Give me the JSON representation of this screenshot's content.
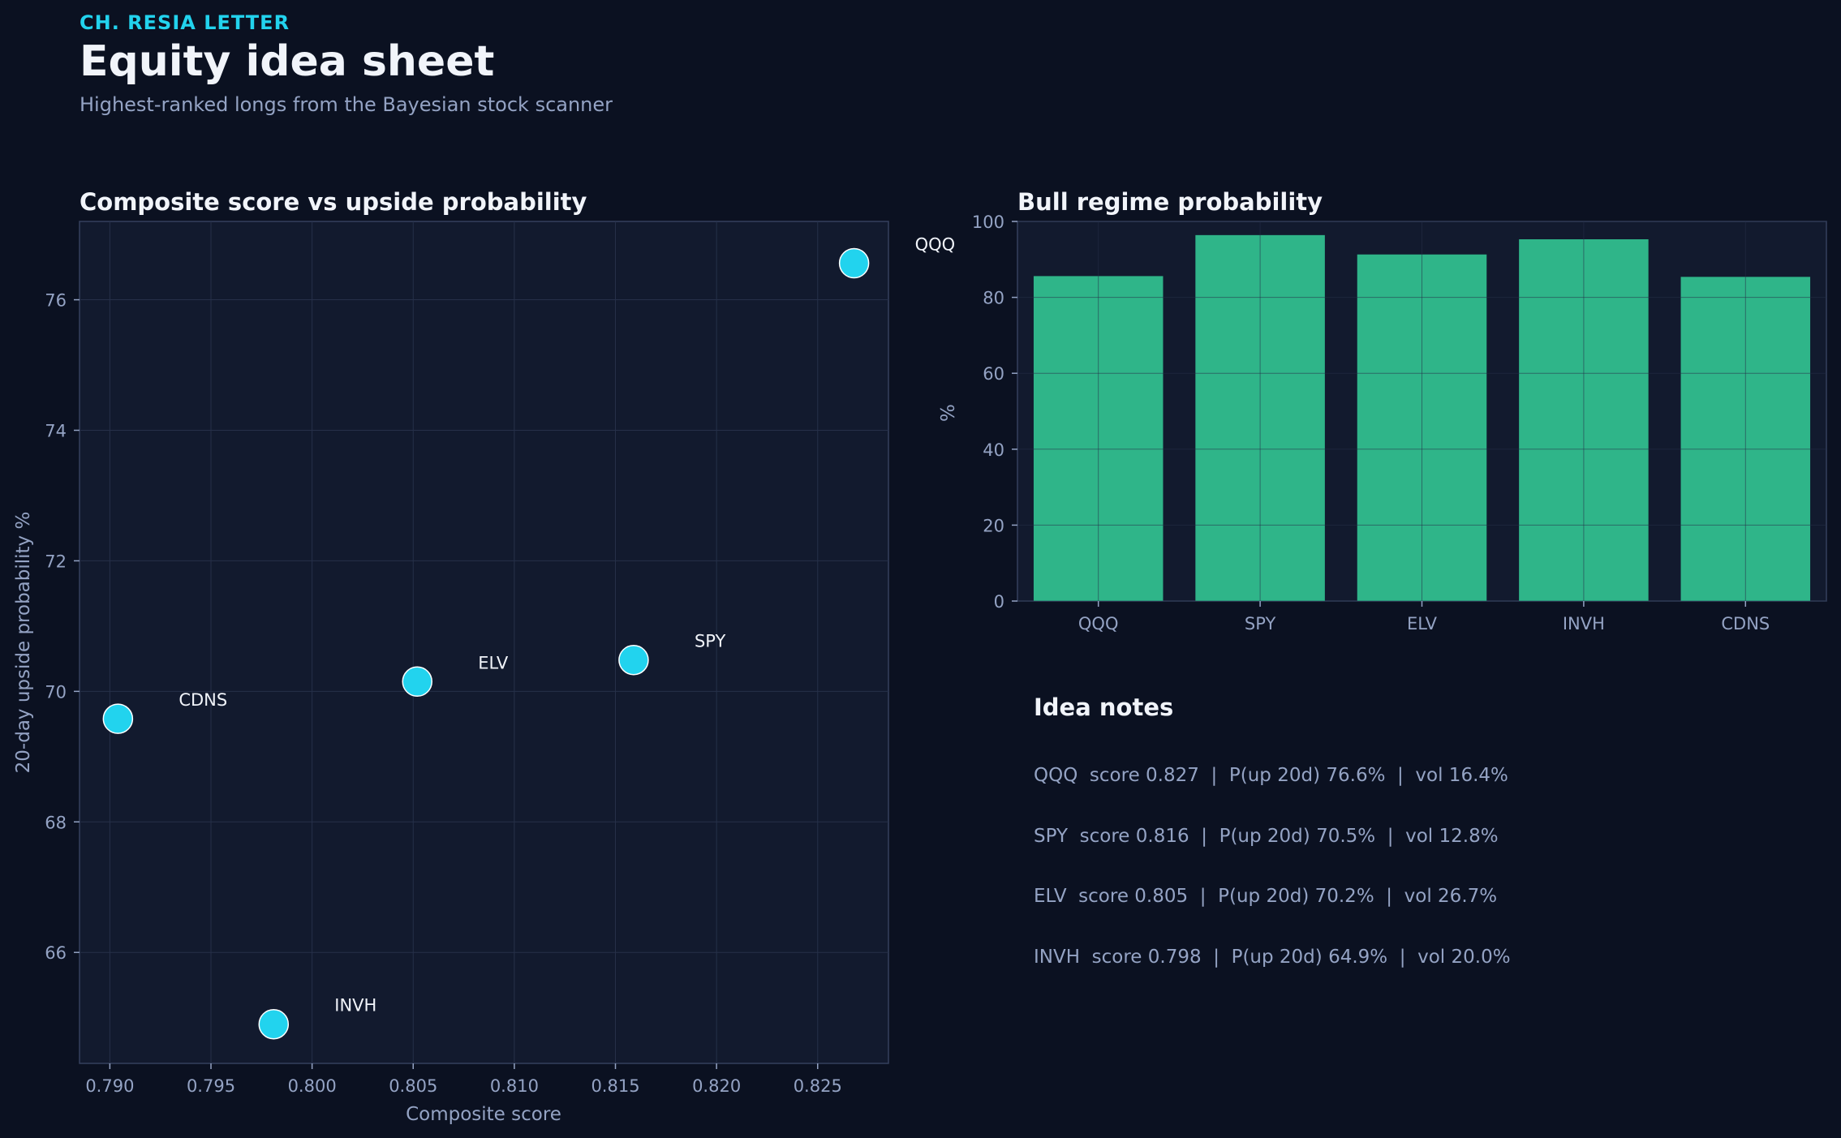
{
  "header": {
    "kicker": "CH. RESIA LETTER",
    "title": "Equity idea sheet",
    "subtitle": "Highest-ranked longs from the Bayesian stock scanner"
  },
  "colors": {
    "background": "#0b1121",
    "panel": "#121a2e",
    "accent_cyan": "#22d3ee",
    "bar_green": "#2fb589",
    "text_muted": "#94a3c4"
  },
  "chart_data": [
    {
      "type": "scatter",
      "title": "Composite score vs upside probability",
      "xlabel": "Composite score",
      "ylabel": "20-day upside probability %",
      "xlim": [
        0.7885,
        0.8285
      ],
      "ylim": [
        64.3,
        77.2
      ],
      "xticks": [
        0.79,
        0.795,
        0.8,
        0.805,
        0.81,
        0.815,
        0.82,
        0.825
      ],
      "xtick_labels": [
        "0.790",
        "0.795",
        "0.800",
        "0.805",
        "0.810",
        "0.815",
        "0.820",
        "0.825"
      ],
      "yticks": [
        66,
        68,
        70,
        72,
        74,
        76
      ],
      "ytick_labels": [
        "66",
        "68",
        "70",
        "72",
        "74",
        "76"
      ],
      "grid": true,
      "points": [
        {
          "label": "QQQ",
          "x": 0.8268,
          "y": 76.56
        },
        {
          "label": "SPY",
          "x": 0.8159,
          "y": 70.48
        },
        {
          "label": "ELV",
          "x": 0.8052,
          "y": 70.15
        },
        {
          "label": "INVH",
          "x": 0.7981,
          "y": 64.9
        },
        {
          "label": "CDNS",
          "x": 0.7904,
          "y": 69.58
        }
      ]
    },
    {
      "type": "bar",
      "title": "Bull regime probability",
      "ylabel": "%",
      "ylim": [
        0,
        100
      ],
      "yticks": [
        0,
        20,
        40,
        60,
        80,
        100
      ],
      "ytick_labels": [
        "0",
        "20",
        "40",
        "60",
        "80",
        "100"
      ],
      "grid": true,
      "categories": [
        "QQQ",
        "SPY",
        "ELV",
        "INVH",
        "CDNS"
      ],
      "values": [
        85.6,
        96.4,
        91.3,
        95.3,
        85.4
      ]
    }
  ],
  "notes": {
    "title": "Idea notes",
    "lines": [
      "QQQ  score 0.827  |  P(up 20d) 76.6%  |  vol 16.4%",
      "SPY  score 0.816  |  P(up 20d) 70.5%  |  vol 12.8%",
      "ELV  score 0.805  |  P(up 20d) 70.2%  |  vol 26.7%",
      "INVH  score 0.798  |  P(up 20d) 64.9%  |  vol 20.0%"
    ]
  }
}
